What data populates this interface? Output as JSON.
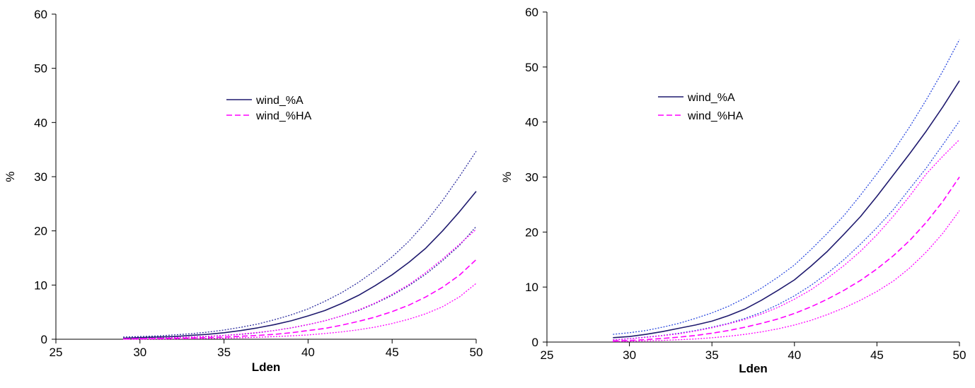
{
  "chart_data": [
    {
      "type": "line",
      "xlabel": "Lden",
      "ylabel": "%",
      "xlim": [
        25,
        50
      ],
      "ylim": [
        0,
        60
      ],
      "xticks": [
        25,
        30,
        35,
        40,
        45,
        50
      ],
      "yticks": [
        0,
        10,
        20,
        30,
        40,
        50,
        60
      ],
      "grid": false,
      "legend_position": "upper-middle",
      "x": [
        29,
        30,
        31,
        32,
        33,
        34,
        35,
        36,
        37,
        38,
        39,
        40,
        41,
        42,
        43,
        44,
        45,
        46,
        47,
        48,
        49,
        50
      ],
      "series": [
        {
          "name": "wind_%A",
          "role": "main",
          "color": "#1f1a6e",
          "dash": "solid",
          "values": [
            0.2,
            0.3,
            0.4,
            0.5,
            0.7,
            0.9,
            1.2,
            1.6,
            2.1,
            2.7,
            3.4,
            4.3,
            5.3,
            6.6,
            8.1,
            9.9,
            11.9,
            14.2,
            16.8,
            20.0,
            23.5,
            27.3
          ]
        },
        {
          "name": "",
          "role": "upper-bound",
          "color": "#2b2b9e",
          "dash": "dotted",
          "values": [
            0.4,
            0.5,
            0.6,
            0.8,
            1.0,
            1.3,
            1.7,
            2.2,
            2.8,
            3.6,
            4.5,
            5.6,
            7.0,
            8.6,
            10.5,
            12.7,
            15.2,
            18.1,
            21.6,
            25.6,
            30.0,
            34.7
          ]
        },
        {
          "name": "",
          "role": "lower-bound",
          "color": "#2b2b9e",
          "dash": "dotted",
          "values": [
            0.1,
            0.15,
            0.2,
            0.3,
            0.4,
            0.5,
            0.7,
            0.9,
            1.2,
            1.6,
            2.1,
            2.7,
            3.4,
            4.3,
            5.3,
            6.6,
            8.1,
            9.9,
            12.0,
            14.5,
            17.3,
            20.8
          ]
        },
        {
          "name": "wind_%HA",
          "role": "main",
          "color": "#ff00ff",
          "dash": "dashed",
          "values": [
            0.05,
            0.08,
            0.12,
            0.17,
            0.23,
            0.3,
            0.4,
            0.55,
            0.7,
            0.9,
            1.2,
            1.6,
            2.0,
            2.6,
            3.3,
            4.1,
            5.1,
            6.3,
            7.8,
            9.6,
            11.8,
            14.7
          ]
        },
        {
          "name": "",
          "role": "upper-bound",
          "color": "#ff00ff",
          "dash": "dotted",
          "values": [
            0.1,
            0.15,
            0.2,
            0.3,
            0.4,
            0.55,
            0.7,
            0.95,
            1.25,
            1.6,
            2.1,
            2.7,
            3.4,
            4.3,
            5.4,
            6.7,
            8.3,
            10.1,
            12.3,
            14.8,
            17.5,
            20.3
          ]
        },
        {
          "name": "",
          "role": "lower-bound",
          "color": "#ff00ff",
          "dash": "dotted",
          "values": [
            0.02,
            0.03,
            0.05,
            0.07,
            0.1,
            0.14,
            0.2,
            0.27,
            0.36,
            0.48,
            0.63,
            0.8,
            1.05,
            1.35,
            1.75,
            2.25,
            2.9,
            3.7,
            4.7,
            6.0,
            7.8,
            10.3
          ]
        }
      ]
    },
    {
      "type": "line",
      "xlabel": "Lden",
      "ylabel": "%",
      "xlim": [
        25,
        50
      ],
      "ylim": [
        0,
        60
      ],
      "xticks": [
        25,
        30,
        35,
        40,
        45,
        50
      ],
      "yticks": [
        0,
        10,
        20,
        30,
        40,
        50,
        60
      ],
      "grid": false,
      "legend_position": "upper-middle",
      "x": [
        29,
        30,
        31,
        32,
        33,
        34,
        35,
        36,
        37,
        38,
        39,
        40,
        41,
        42,
        43,
        44,
        45,
        46,
        47,
        48,
        49,
        50
      ],
      "series": [
        {
          "name": "wind_%A",
          "role": "main",
          "color": "#1f1a6e",
          "dash": "solid",
          "values": [
            0.8,
            1.0,
            1.4,
            1.9,
            2.5,
            3.1,
            3.8,
            4.8,
            6.0,
            7.6,
            9.4,
            11.3,
            13.8,
            16.5,
            19.6,
            22.8,
            26.5,
            30.4,
            34.3,
            38.4,
            42.8,
            47.5
          ]
        },
        {
          "name": "",
          "role": "upper-bound",
          "color": "#2b4adf",
          "dash": "dotted",
          "values": [
            1.4,
            1.7,
            2.1,
            2.7,
            3.4,
            4.3,
            5.3,
            6.5,
            8.0,
            9.8,
            11.8,
            14.0,
            16.8,
            19.8,
            23.0,
            26.7,
            30.6,
            34.7,
            39.2,
            44.1,
            49.3,
            55.0
          ]
        },
        {
          "name": "",
          "role": "lower-bound",
          "color": "#2b4adf",
          "dash": "dotted",
          "values": [
            0.4,
            0.6,
            0.9,
            1.2,
            1.6,
            2.1,
            2.7,
            3.4,
            4.3,
            5.4,
            6.8,
            8.4,
            10.3,
            12.5,
            15.0,
            17.8,
            20.8,
            24.1,
            27.9,
            31.7,
            35.9,
            40.2
          ]
        },
        {
          "name": "wind_%HA",
          "role": "main",
          "color": "#ff00ff",
          "dash": "dashed",
          "values": [
            0.2,
            0.3,
            0.45,
            0.65,
            0.9,
            1.2,
            1.6,
            2.1,
            2.7,
            3.4,
            4.2,
            5.2,
            6.4,
            7.8,
            9.4,
            11.2,
            13.3,
            15.7,
            18.5,
            21.8,
            25.6,
            30.0
          ]
        },
        {
          "name": "",
          "role": "upper-bound",
          "color": "#ff00ff",
          "dash": "dotted",
          "values": [
            0.4,
            0.6,
            0.85,
            1.15,
            1.5,
            2.0,
            2.6,
            3.3,
            4.1,
            5.1,
            6.3,
            7.8,
            9.5,
            11.6,
            13.9,
            16.5,
            19.5,
            22.9,
            26.6,
            30.6,
            33.8,
            36.8
          ]
        },
        {
          "name": "",
          "role": "lower-bound",
          "color": "#ff00ff",
          "dash": "dotted",
          "values": [
            0.1,
            0.15,
            0.22,
            0.3,
            0.42,
            0.57,
            0.78,
            1.05,
            1.4,
            1.85,
            2.4,
            3.1,
            3.95,
            5.0,
            6.2,
            7.6,
            9.2,
            11.1,
            13.5,
            16.4,
            19.8,
            23.9
          ]
        }
      ]
    }
  ]
}
